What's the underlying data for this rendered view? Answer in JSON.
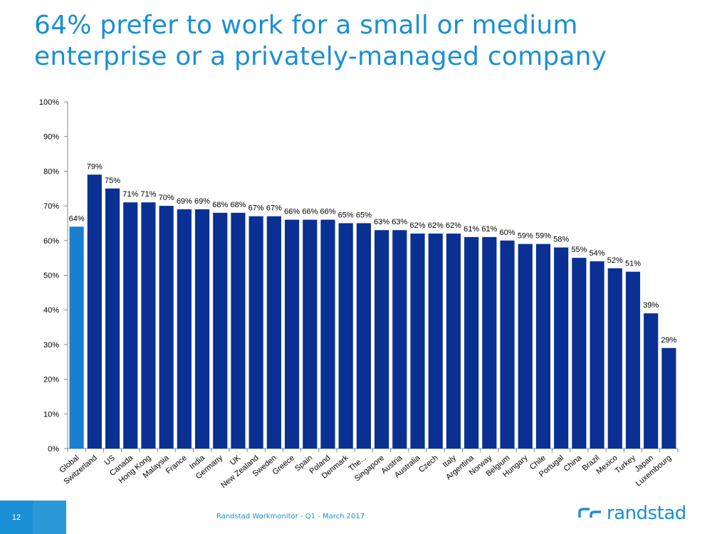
{
  "title": {
    "line1": "64%  prefer to work for a small or medium",
    "line2": "enterprise or a privately-managed company"
  },
  "footer": {
    "page_number": "12",
    "source": "Randstad Workmonitor - Q1 - March 2017",
    "brand": "randstad"
  },
  "colors": {
    "highlight_bar": "#1a7fd0",
    "bar": "#0a3093",
    "title": "#1a8fd5"
  },
  "chart_data": {
    "type": "bar",
    "categories": [
      "Global",
      "Switzerland",
      "US",
      "Canada",
      "Hong Kong",
      "Malaysia",
      "France",
      "India",
      "Germany",
      "UK",
      "New Zealand",
      "Sweden",
      "Greece",
      "Spain",
      "Poland",
      "Denmark",
      "The...",
      "Singapore",
      "Austria",
      "Australia",
      "Czech",
      "Italy",
      "Argentina",
      "Norway",
      "Belgium",
      "Hungary",
      "Chile",
      "Portugal",
      "China",
      "Brazil",
      "Mexico",
      "Turkey",
      "Japan",
      "Luxembourg"
    ],
    "values": [
      64,
      79,
      75,
      71,
      71,
      70,
      69,
      69,
      68,
      68,
      67,
      67,
      66,
      66,
      66,
      65,
      65,
      63,
      63,
      62,
      62,
      62,
      61,
      61,
      60,
      59,
      59,
      58,
      55,
      54,
      52,
      51,
      39,
      29
    ],
    "data_labels": [
      "64%",
      "79%",
      "75%",
      "71%",
      "71%",
      "70%",
      "69%",
      "69%",
      "68%",
      "68%",
      "67%",
      "67%",
      "66%",
      "66%",
      "66%",
      "65%",
      "65%",
      "63%",
      "63%",
      "62%",
      "62%",
      "62%",
      "61%",
      "61%",
      "60%",
      "59%",
      "59%",
      "58%",
      "55%",
      "54%",
      "52%",
      "51%",
      "39%",
      "29%"
    ],
    "highlight_category": "Global",
    "ylim": [
      0,
      100
    ],
    "yticks": [
      "0%",
      "10%",
      "20%",
      "30%",
      "40%",
      "50%",
      "60%",
      "70%",
      "80%",
      "90%",
      "100%"
    ],
    "grid": false,
    "legend": "none"
  }
}
